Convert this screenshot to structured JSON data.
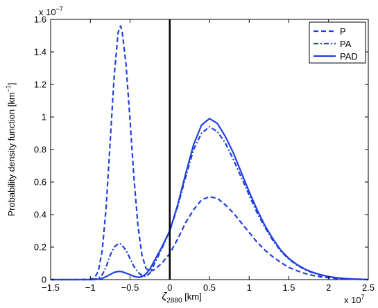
{
  "chart_data": {
    "type": "line",
    "title": "",
    "xlabel": {
      "base": "ζ",
      "sub": "2880",
      "unit": " [km]"
    },
    "ylabel": "Probability density function [km",
    "ylabel_sup": "−1",
    "ylabel_end": "]",
    "x_multiplier": {
      "base": "x 10",
      "exp": "7"
    },
    "y_multiplier": {
      "base": "x 10",
      "exp": "−7"
    },
    "xlim": [
      -1.5,
      2.5
    ],
    "ylim": [
      0,
      1.6
    ],
    "xticks": [
      -1.5,
      -1,
      -0.5,
      0,
      0.5,
      1,
      1.5,
      2,
      2.5
    ],
    "xtick_labels": [
      "−1.5",
      "−1",
      "−0.5",
      "0",
      "0.5",
      "1",
      "1.5",
      "2",
      "2.5"
    ],
    "yticks": [
      0,
      0.2,
      0.4,
      0.6,
      0.8,
      1,
      1.2,
      1.4,
      1.6
    ],
    "ytick_labels": [
      "0",
      "0.2",
      "0.4",
      "0.6",
      "0.8",
      "1",
      "1.2",
      "1.4",
      "1.6"
    ],
    "grid": false,
    "legend_position": "top-right",
    "vertical_line_x": 0,
    "x": [
      -1.5,
      -1.2,
      -1.0,
      -0.95,
      -0.9,
      -0.85,
      -0.8,
      -0.75,
      -0.7,
      -0.65,
      -0.62,
      -0.6,
      -0.55,
      -0.5,
      -0.45,
      -0.4,
      -0.35,
      -0.3,
      -0.25,
      -0.2,
      -0.1,
      0,
      0.1,
      0.2,
      0.3,
      0.4,
      0.5,
      0.6,
      0.7,
      0.8,
      0.9,
      1.0,
      1.1,
      1.2,
      1.3,
      1.4,
      1.5,
      1.6,
      1.7,
      1.8,
      1.9,
      2.0,
      2.1,
      2.2,
      2.3,
      2.4,
      2.5
    ],
    "series": [
      {
        "name": "P",
        "style": "dashed",
        "color": "#1f3fe0",
        "values": [
          0,
          0,
          0.002,
          0.01,
          0.05,
          0.18,
          0.45,
          0.85,
          1.25,
          1.52,
          1.56,
          1.53,
          1.32,
          0.98,
          0.62,
          0.33,
          0.15,
          0.07,
          0.05,
          0.06,
          0.1,
          0.16,
          0.25,
          0.35,
          0.43,
          0.49,
          0.51,
          0.5,
          0.46,
          0.41,
          0.35,
          0.29,
          0.23,
          0.18,
          0.14,
          0.105,
          0.075,
          0.055,
          0.038,
          0.026,
          0.017,
          0.011,
          0.007,
          0.004,
          0.002,
          0.001,
          0
        ]
      },
      {
        "name": "PA",
        "style": "dashdot",
        "color": "#1f3fe0",
        "values": [
          0,
          0,
          0,
          0.002,
          0.008,
          0.03,
          0.08,
          0.15,
          0.2,
          0.22,
          0.22,
          0.21,
          0.18,
          0.13,
          0.08,
          0.045,
          0.025,
          0.02,
          0.04,
          0.09,
          0.19,
          0.3,
          0.45,
          0.63,
          0.8,
          0.9,
          0.94,
          0.91,
          0.84,
          0.74,
          0.63,
          0.52,
          0.41,
          0.32,
          0.24,
          0.175,
          0.125,
          0.09,
          0.062,
          0.042,
          0.028,
          0.018,
          0.011,
          0.007,
          0.004,
          0.002,
          0
        ]
      },
      {
        "name": "PAD",
        "style": "solid",
        "color": "#1f3fe0",
        "values": [
          0,
          0,
          0,
          0,
          0.002,
          0.008,
          0.018,
          0.032,
          0.045,
          0.05,
          0.05,
          0.048,
          0.04,
          0.03,
          0.02,
          0.014,
          0.018,
          0.035,
          0.065,
          0.11,
          0.2,
          0.3,
          0.46,
          0.65,
          0.83,
          0.95,
          0.99,
          0.96,
          0.88,
          0.78,
          0.66,
          0.54,
          0.43,
          0.33,
          0.25,
          0.18,
          0.13,
          0.093,
          0.065,
          0.045,
          0.03,
          0.019,
          0.012,
          0.007,
          0.004,
          0.002,
          0
        ]
      }
    ]
  }
}
